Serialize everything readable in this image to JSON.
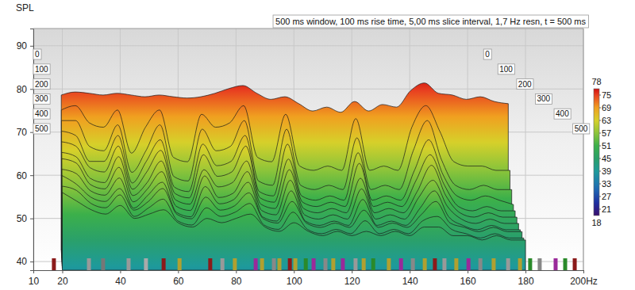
{
  "chart_data": {
    "type": "waterfall",
    "title": "500 ms window, 100 ms rise time, 5,00 ms slice interval, 1,7 Hz resn, t = 500 ms",
    "ylabel": "SPL",
    "x": [
      20,
      25,
      30,
      35,
      40,
      45,
      50,
      55,
      60,
      65,
      70,
      75,
      80,
      85,
      90,
      95,
      100,
      105,
      110,
      115,
      120,
      125,
      130,
      135,
      140,
      145,
      150,
      155,
      160,
      165,
      170,
      175,
      180
    ],
    "xlim": [
      10,
      200
    ],
    "xticks": [
      10,
      20,
      40,
      60,
      80,
      100,
      120,
      140,
      160,
      180,
      {
        "value": 200,
        "label": "200Hz"
      }
    ],
    "ylim": [
      38,
      94
    ],
    "yticks": [
      40,
      50,
      60,
      70,
      80,
      90
    ],
    "zlim": [
      0,
      500
    ],
    "zticks": [
      0,
      100,
      200,
      300,
      400,
      500
    ],
    "grid": true,
    "series": [
      {
        "time": 0,
        "values": [
          74,
          74.7,
          74.4,
          74,
          74.4,
          74,
          73.6,
          74,
          73.6,
          73.3,
          73.6,
          74.4,
          75.5,
          76.2,
          74.4,
          73,
          73.6,
          72,
          70.3,
          71.2,
          70,
          72.5,
          70.3,
          71.8,
          71.2,
          75,
          76.8,
          74.4,
          74,
          73,
          73.6,
          72.5,
          72
        ]
      },
      {
        "time": 50,
        "values": [
          71,
          72,
          68,
          67,
          71,
          61,
          67,
          71,
          60,
          59,
          70,
          67,
          68,
          72,
          60,
          59,
          70,
          58,
          57,
          58,
          57,
          69,
          57,
          58,
          57,
          67,
          72,
          66,
          59,
          58,
          58,
          57,
          57
        ]
      },
      {
        "time": 100,
        "values": [
          69,
          69,
          63,
          62,
          68,
          57,
          62,
          68,
          56,
          55,
          67,
          62,
          63,
          69,
          55,
          54,
          67,
          54,
          53,
          54,
          53,
          65,
          53,
          54,
          53,
          62,
          69,
          60,
          54,
          53,
          54,
          53,
          53
        ]
      },
      {
        "time": 150,
        "values": [
          67,
          66,
          60,
          60,
          66,
          55,
          60,
          65,
          54,
          53,
          64,
          59,
          60,
          66,
          53,
          52,
          64,
          52,
          51,
          52,
          51,
          62,
          51,
          52,
          51,
          58,
          65,
          57,
          52,
          51,
          52,
          51,
          50
        ]
      },
      {
        "time": 200,
        "values": [
          65,
          64,
          59,
          58,
          64,
          54,
          58,
          63,
          53,
          52,
          62,
          57,
          58,
          64,
          52,
          51,
          61,
          51,
          50,
          51,
          50,
          60,
          50,
          51,
          50,
          56,
          62,
          55,
          50,
          49,
          50,
          49,
          49
        ]
      },
      {
        "time": 250,
        "values": [
          63,
          62,
          57,
          56,
          62,
          53,
          56,
          61,
          52,
          51,
          59,
          55,
          56,
          61,
          51,
          50,
          59,
          50,
          49,
          50,
          49,
          57,
          49,
          50,
          49,
          54,
          60,
          53,
          49,
          48,
          49,
          48,
          48
        ]
      },
      {
        "time": 300,
        "values": [
          62,
          61,
          56,
          55,
          60,
          52,
          55,
          59,
          51,
          50,
          58,
          53,
          54,
          59,
          50,
          49,
          57,
          49,
          48,
          49,
          48,
          55,
          48,
          49,
          48,
          53,
          57,
          51,
          48,
          47,
          48,
          47,
          47
        ]
      },
      {
        "time": 350,
        "values": [
          60,
          59,
          55,
          54,
          58,
          51,
          54,
          57,
          50,
          49,
          56,
          52,
          53,
          57,
          49,
          48,
          55,
          48,
          47,
          48,
          47,
          53,
          47,
          48,
          47,
          51,
          55,
          49,
          47,
          46,
          47,
          46,
          46
        ]
      },
      {
        "time": 400,
        "values": [
          59,
          57,
          54,
          53,
          56,
          51,
          53,
          56,
          50,
          49,
          54,
          51,
          52,
          55,
          49,
          48,
          53,
          48,
          47,
          48,
          47,
          51,
          47,
          48,
          47,
          50,
          53,
          48,
          47,
          46,
          47,
          46,
          46
        ]
      },
      {
        "time": 450,
        "values": [
          57,
          56,
          53,
          52,
          55,
          50,
          52,
          54,
          49,
          48,
          52,
          50,
          51,
          53,
          48,
          47,
          51,
          47,
          46,
          47,
          46,
          49,
          46,
          47,
          46,
          49,
          50,
          47,
          46,
          45,
          46,
          45,
          45
        ]
      },
      {
        "time": 500,
        "values": [
          56,
          54,
          52,
          51,
          53,
          50,
          51,
          52,
          49,
          48,
          50,
          49,
          50,
          51,
          48,
          47,
          49,
          47,
          46,
          47,
          46,
          47,
          46,
          47,
          46,
          48,
          48,
          46,
          46,
          45,
          46,
          45,
          45
        ]
      }
    ],
    "colorbar": {
      "range": [
        18,
        78
      ],
      "ticks": [
        18,
        21,
        27,
        33,
        39,
        45,
        51,
        57,
        63,
        69,
        75,
        78
      ]
    },
    "mode_markers": {
      "x": [
        17.1,
        29.2,
        34.1,
        42.9,
        48.9,
        55.0,
        60.5,
        71.1,
        75.3,
        79.6,
        86.8,
        89.0,
        93.1,
        95.0,
        98.6,
        100.5,
        104.1,
        106.8,
        110.9,
        113.6,
        116.9,
        121.3,
        124.1,
        127.4,
        132.8,
        137.0,
        141.1,
        145.2,
        148.7,
        152.0,
        156.1,
        160.3,
        164.4,
        169.0,
        174.0,
        178.1,
        181.6,
        184.9,
        190.4,
        193.7,
        197.0
      ],
      "colors": [
        "#8b1a1a",
        "#999999",
        "#777777",
        "#999999",
        "#aaaaaa",
        "#8b1a1a",
        "#b0a030",
        "#8b1a1a",
        "#999999",
        "#b0a030",
        "#9a2a9a",
        "#b0a030",
        "#888888",
        "#b0a030",
        "#8b1a1a",
        "#b0a030",
        "#2a8a2a",
        "#9a2a9a",
        "#888888",
        "#b0a030",
        "#9a2a9a",
        "#999999",
        "#b0a030",
        "#2a8a2a",
        "#b0a030",
        "#9a2a9a",
        "#888888",
        "#b0a030",
        "#8b1a1a",
        "#999999",
        "#b0a030",
        "#9a2a9a",
        "#888888",
        "#b0a030",
        "#999999",
        "#b0a030",
        "#2a8a2a",
        "#888888",
        "#9a2a9a",
        "#2a8a2a",
        "#8b1a1a"
      ]
    }
  }
}
